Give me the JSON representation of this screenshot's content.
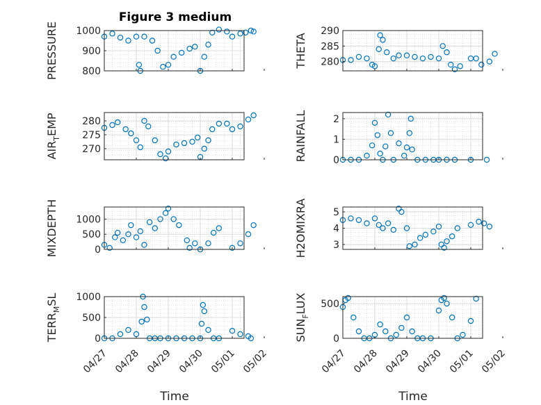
{
  "title": "Figure 3 medium",
  "marker_color": "#0072BD",
  "chart_data": [
    {
      "type": "scatter",
      "ylabel": "PRESSURE",
      "ylim": [
        800,
        1000
      ],
      "yticks": [
        800,
        900,
        1000
      ],
      "points": [
        [
          "04/27",
          970
        ],
        [
          "04/27 06:00",
          985
        ],
        [
          "04/27 12:00",
          965
        ],
        [
          "04/27 18:00",
          950
        ],
        [
          "04/28",
          970
        ],
        [
          "04/28 02:00",
          830
        ],
        [
          "04/28 03:00",
          800
        ],
        [
          "04/28 06:00",
          970
        ],
        [
          "04/28 12:00",
          950
        ],
        [
          "04/28 16:00",
          900
        ],
        [
          "04/28 20:00",
          820
        ],
        [
          "04/29",
          830
        ],
        [
          "04/29 04:00",
          870
        ],
        [
          "04/29 10:00",
          890
        ],
        [
          "04/29 16:00",
          910
        ],
        [
          "04/29 20:00",
          920
        ],
        [
          "04/30",
          800
        ],
        [
          "04/30 03:00",
          870
        ],
        [
          "04/30 06:00",
          930
        ],
        [
          "04/30 09:00",
          990
        ],
        [
          "04/30 14:00",
          1005
        ],
        [
          "04/30 20:00",
          995
        ],
        [
          "05/01",
          970
        ],
        [
          "05/01 06:00",
          985
        ],
        [
          "05/01 10:00",
          990
        ],
        [
          "05/01 14:00",
          1000
        ],
        [
          "05/01 16:00",
          995
        ]
      ]
    },
    {
      "type": "scatter",
      "ylabel": "THETA",
      "ylim": [
        277,
        290
      ],
      "yticks": [
        280,
        285,
        290
      ],
      "points": [
        [
          "04/27",
          280.5
        ],
        [
          "04/27 06:00",
          280.5
        ],
        [
          "04/27 12:00",
          281.5
        ],
        [
          "04/27 18:00",
          281
        ],
        [
          "04/27 22:00",
          279
        ],
        [
          "04/28",
          278.5
        ],
        [
          "04/28 03:00",
          284
        ],
        [
          "04/28 04:00",
          288.5
        ],
        [
          "04/28 06:00",
          287
        ],
        [
          "04/28 09:00",
          283
        ],
        [
          "04/28 14:00",
          281
        ],
        [
          "04/28 18:00",
          282
        ],
        [
          "04/29",
          282
        ],
        [
          "04/29 06:00",
          281.5
        ],
        [
          "04/29 12:00",
          281
        ],
        [
          "04/29 18:00",
          281.5
        ],
        [
          "04/30",
          281
        ],
        [
          "04/30 03:00",
          285
        ],
        [
          "04/30 06:00",
          283
        ],
        [
          "04/30 09:00",
          279
        ],
        [
          "04/30 12:00",
          277.5
        ],
        [
          "04/30 16:00",
          278.5
        ],
        [
          "05/01",
          281
        ],
        [
          "05/01 04:00",
          281
        ],
        [
          "05/01 08:00",
          279
        ],
        [
          "05/01 14:00",
          280
        ],
        [
          "05/01 18:00",
          282.5
        ]
      ]
    },
    {
      "type": "scatter",
      "ylabel": "AIR_TEMP",
      "ylim": [
        266,
        283
      ],
      "yticks": [
        270,
        275,
        280
      ],
      "points": [
        [
          "04/27",
          277.5
        ],
        [
          "04/27 06:00",
          278.5
        ],
        [
          "04/27 10:00",
          279.5
        ],
        [
          "04/27 16:00",
          277
        ],
        [
          "04/27 20:00",
          275.5
        ],
        [
          "04/28",
          273
        ],
        [
          "04/28 03:00",
          270.5
        ],
        [
          "04/28 06:00",
          280
        ],
        [
          "04/28 09:00",
          278
        ],
        [
          "04/28 14:00",
          273
        ],
        [
          "04/28 18:00",
          268
        ],
        [
          "04/28 22:00",
          266.5
        ],
        [
          "04/29",
          269
        ],
        [
          "04/29 06:00",
          271.5
        ],
        [
          "04/29 12:00",
          272
        ],
        [
          "04/29 18:00",
          272.5
        ],
        [
          "04/29 22:00",
          274
        ],
        [
          "04/30",
          267
        ],
        [
          "04/30 03:00",
          270
        ],
        [
          "04/30 06:00",
          273
        ],
        [
          "04/30 09:00",
          277
        ],
        [
          "04/30 14:00",
          279
        ],
        [
          "04/30 20:00",
          279
        ],
        [
          "05/01",
          277
        ],
        [
          "05/01 06:00",
          278
        ],
        [
          "05/01 12:00",
          280.5
        ],
        [
          "05/01 16:00",
          282
        ]
      ]
    },
    {
      "type": "scatter",
      "ylabel": "RAINFALL",
      "ylim": [
        0,
        2.3
      ],
      "yticks": [
        0,
        1,
        2
      ],
      "points": [
        [
          "04/27",
          0
        ],
        [
          "04/27 06:00",
          0
        ],
        [
          "04/27 12:00",
          0
        ],
        [
          "04/27 18:00",
          0.2
        ],
        [
          "04/27 22:00",
          0.7
        ],
        [
          "04/28",
          1.8
        ],
        [
          "04/28 02:00",
          1.2
        ],
        [
          "04/28 04:00",
          0.3
        ],
        [
          "04/28 06:00",
          0
        ],
        [
          "04/28 08:00",
          0.65
        ],
        [
          "04/28 10:00",
          2.2
        ],
        [
          "04/28 12:00",
          1.3
        ],
        [
          "04/28 14:00",
          0
        ],
        [
          "04/28 18:00",
          0.8
        ],
        [
          "04/28 22:00",
          0.2
        ],
        [
          "04/29",
          0.6
        ],
        [
          "04/29 02:00",
          1.3
        ],
        [
          "04/29 03:00",
          2.0
        ],
        [
          "04/29 04:00",
          0.5
        ],
        [
          "04/29 08:00",
          0
        ],
        [
          "04/29 14:00",
          0
        ],
        [
          "04/29 20:00",
          0
        ],
        [
          "04/30",
          0
        ],
        [
          "04/30 06:00",
          0
        ],
        [
          "04/30 12:00",
          0
        ],
        [
          "05/01",
          0
        ],
        [
          "05/01 12:00",
          0
        ]
      ]
    },
    {
      "type": "scatter",
      "ylabel": "MIXDEPTH",
      "ylim": [
        0,
        1400
      ],
      "yticks": [
        0,
        500,
        1000
      ],
      "points": [
        [
          "04/27",
          150
        ],
        [
          "04/27 04:00",
          50
        ],
        [
          "04/27 08:00",
          400
        ],
        [
          "04/27 10:00",
          550
        ],
        [
          "04/27 14:00",
          300
        ],
        [
          "04/27 18:00",
          500
        ],
        [
          "04/27 20:00",
          800
        ],
        [
          "04/28",
          400
        ],
        [
          "04/28 03:00",
          600
        ],
        [
          "04/28 06:00",
          150
        ],
        [
          "04/28 10:00",
          900
        ],
        [
          "04/28 14:00",
          700
        ],
        [
          "04/28 18:00",
          1000
        ],
        [
          "04/28 22:00",
          1200
        ],
        [
          "04/29",
          1350
        ],
        [
          "04/29 04:00",
          1000
        ],
        [
          "04/29 08:00",
          800
        ],
        [
          "04/29 14:00",
          300
        ],
        [
          "04/29 16:00",
          50
        ],
        [
          "04/29 20:00",
          200
        ],
        [
          "04/30",
          0
        ],
        [
          "04/30 06:00",
          200
        ],
        [
          "04/30 10:00",
          550
        ],
        [
          "04/30 14:00",
          700
        ],
        [
          "05/01",
          50
        ],
        [
          "05/01 06:00",
          200
        ],
        [
          "05/01 12:00",
          500
        ],
        [
          "05/01 16:00",
          800
        ]
      ]
    },
    {
      "type": "scatter",
      "ylabel": "H2OMIXRA",
      "ylim": [
        2.7,
        5.3
      ],
      "yticks": [
        3,
        4,
        5
      ],
      "points": [
        [
          "04/27",
          4.5
        ],
        [
          "04/27 06:00",
          4.6
        ],
        [
          "04/27 12:00",
          4.5
        ],
        [
          "04/27 18:00",
          4.3
        ],
        [
          "04/28",
          4.6
        ],
        [
          "04/28 03:00",
          4.2
        ],
        [
          "04/28 06:00",
          4.0
        ],
        [
          "04/28 10:00",
          4.3
        ],
        [
          "04/28 14:00",
          3.9
        ],
        [
          "04/28 18:00",
          5.2
        ],
        [
          "04/28 20:00",
          5.0
        ],
        [
          "04/29",
          4.0
        ],
        [
          "04/29 02:00",
          2.9
        ],
        [
          "04/29 06:00",
          3.0
        ],
        [
          "04/29 10:00",
          3.4
        ],
        [
          "04/29 14:00",
          3.6
        ],
        [
          "04/29 20:00",
          3.8
        ],
        [
          "04/30",
          4.1
        ],
        [
          "04/30 02:00",
          3.0
        ],
        [
          "04/30 04:00",
          2.8
        ],
        [
          "04/30 06:00",
          3.2
        ],
        [
          "04/30 10:00",
          3.5
        ],
        [
          "04/30 14:00",
          4.0
        ],
        [
          "05/01",
          4.2
        ],
        [
          "05/01 06:00",
          4.4
        ],
        [
          "05/01 10:00",
          4.3
        ],
        [
          "05/01 14:00",
          4.1
        ]
      ]
    },
    {
      "type": "scatter",
      "ylabel": "TERR_MSL",
      "ylim": [
        0,
        1000
      ],
      "yticks": [
        0,
        500,
        1000
      ],
      "points": [
        [
          "04/27",
          0
        ],
        [
          "04/27 06:00",
          0
        ],
        [
          "04/27 12:00",
          100
        ],
        [
          "04/27 18:00",
          200
        ],
        [
          "04/28",
          100
        ],
        [
          "04/28 04:00",
          400
        ],
        [
          "04/28 05:00",
          1000
        ],
        [
          "04/28 06:00",
          750
        ],
        [
          "04/28 08:00",
          450
        ],
        [
          "04/28 10:00",
          0
        ],
        [
          "04/28 14:00",
          0
        ],
        [
          "04/28 18:00",
          0
        ],
        [
          "04/29",
          0
        ],
        [
          "04/29 06:00",
          0
        ],
        [
          "04/29 12:00",
          0
        ],
        [
          "04/29 18:00",
          0
        ],
        [
          "04/30",
          0
        ],
        [
          "04/30 01:00",
          350
        ],
        [
          "04/30 02:00",
          800
        ],
        [
          "04/30 03:00",
          650
        ],
        [
          "04/30 06:00",
          200
        ],
        [
          "04/30 10:00",
          0
        ],
        [
          "04/30 14:00",
          0
        ],
        [
          "05/01",
          180
        ],
        [
          "05/01 06:00",
          100
        ],
        [
          "05/01 12:00",
          50
        ],
        [
          "05/01 14:00",
          0
        ]
      ]
    },
    {
      "type": "scatter",
      "ylabel": "SUN_FLUX",
      "ylim": [
        0,
        600
      ],
      "yticks": [
        0,
        500
      ],
      "points": [
        [
          "04/27",
          450
        ],
        [
          "04/27 02:00",
          550
        ],
        [
          "04/27 04:00",
          580
        ],
        [
          "04/27 08:00",
          300
        ],
        [
          "04/27 12:00",
          100
        ],
        [
          "04/27 16:00",
          0
        ],
        [
          "04/27 20:00",
          0
        ],
        [
          "04/28",
          50
        ],
        [
          "04/28 04:00",
          200
        ],
        [
          "04/28 08:00",
          100
        ],
        [
          "04/28 12:00",
          0
        ],
        [
          "04/28 16:00",
          50
        ],
        [
          "04/28 20:00",
          150
        ],
        [
          "04/29",
          300
        ],
        [
          "04/29 04:00",
          100
        ],
        [
          "04/29 08:00",
          0
        ],
        [
          "04/29 12:00",
          0
        ],
        [
          "04/29 18:00",
          0
        ],
        [
          "04/30",
          400
        ],
        [
          "04/30 02:00",
          550
        ],
        [
          "04/30 04:00",
          580
        ],
        [
          "04/30 06:00",
          500
        ],
        [
          "04/30 10:00",
          300
        ],
        [
          "04/30 14:00",
          0
        ],
        [
          "04/30 18:00",
          50
        ],
        [
          "05/01",
          250
        ],
        [
          "05/01 04:00",
          570
        ]
      ]
    }
  ],
  "x_tick_labels": [
    "04/27",
    "04/28",
    "04/29",
    "04/30",
    "05/01",
    "05/02"
  ],
  "x_label": "Time"
}
